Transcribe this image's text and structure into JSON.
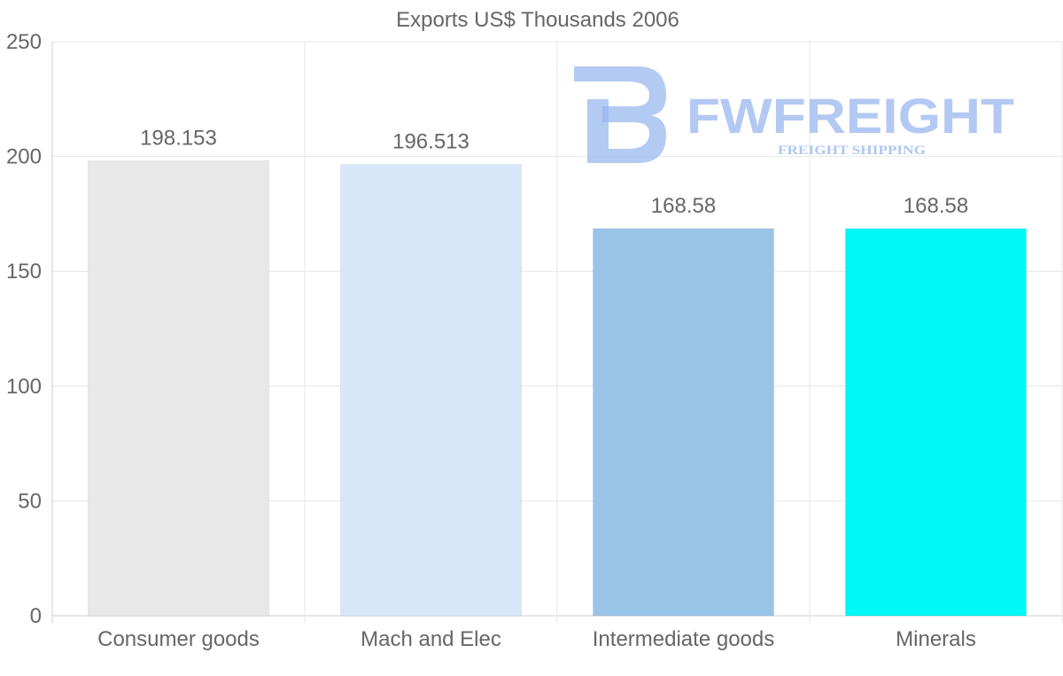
{
  "chart_data": {
    "type": "bar",
    "title": "Exports US$ Thousands 2006",
    "categories": [
      "Consumer goods",
      "Mach and Elec",
      "Intermediate goods",
      "Minerals"
    ],
    "values": [
      198.153,
      196.513,
      168.58,
      168.58
    ],
    "value_labels": [
      "198.153",
      "196.513",
      "168.58",
      "168.58"
    ],
    "colors": [
      "#e8e8e8",
      "#d7e7f9",
      "#9ac3e8",
      "#00f7f7"
    ],
    "yticks": [
      "0",
      "50",
      "100",
      "150",
      "200",
      "250"
    ],
    "ylim": [
      0,
      250
    ],
    "xlabel": "",
    "ylabel": "",
    "grid": true
  },
  "watermark": {
    "brand": "FWFREIGHT",
    "tagline": "FREIGHT SHIPPING",
    "color": "#9ab8ef"
  }
}
